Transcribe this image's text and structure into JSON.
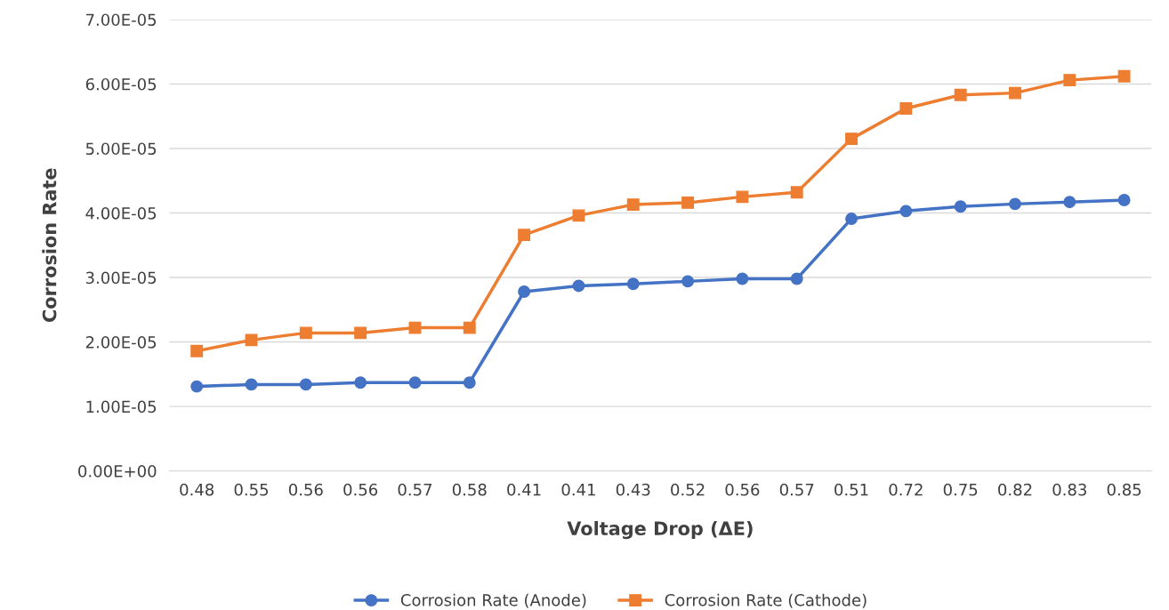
{
  "chart_data": {
    "type": "line",
    "xlabel": "Voltage Drop (ΔE)",
    "ylabel": "Corrosion Rate",
    "categories": [
      "0.48",
      "0.55",
      "0.56",
      "0.56",
      "0.57",
      "0.58",
      "0.41",
      "0.41",
      "0.43",
      "0.52",
      "0.56",
      "0.57",
      "0.51",
      "0.72",
      "0.75",
      "0.82",
      "0.83",
      "0.85"
    ],
    "series": [
      {
        "name": "Corrosion Rate (Anode)",
        "color": "#4472c4",
        "marker": "circle",
        "values": [
          1.31e-05,
          1.34e-05,
          1.34e-05,
          1.37e-05,
          1.37e-05,
          1.37e-05,
          2.78e-05,
          2.87e-05,
          2.9e-05,
          2.94e-05,
          2.98e-05,
          2.98e-05,
          3.91e-05,
          4.03e-05,
          4.1e-05,
          4.14e-05,
          4.17e-05,
          4.2e-05
        ]
      },
      {
        "name": "Corrosion Rate (Cathode)",
        "color": "#ed7d31",
        "marker": "square",
        "values": [
          1.86e-05,
          2.03e-05,
          2.14e-05,
          2.14e-05,
          2.22e-05,
          2.22e-05,
          3.66e-05,
          3.96e-05,
          4.13e-05,
          4.16e-05,
          4.25e-05,
          4.32e-05,
          5.15e-05,
          5.62e-05,
          5.83e-05,
          5.86e-05,
          6.06e-05,
          6.12e-05
        ]
      }
    ],
    "ylim": [
      0,
      7e-05
    ],
    "yticks": [
      {
        "value": 0,
        "label": "0.00E+00"
      },
      {
        "value": 1e-05,
        "label": "1.00E-05"
      },
      {
        "value": 2e-05,
        "label": "2.00E-05"
      },
      {
        "value": 3e-05,
        "label": "3.00E-05"
      },
      {
        "value": 4e-05,
        "label": "4.00E-05"
      },
      {
        "value": 5e-05,
        "label": "5.00E-05"
      },
      {
        "value": 6e-05,
        "label": "6.00E-05"
      },
      {
        "value": 7e-05,
        "label": "7.00E-05"
      }
    ],
    "grid": "y",
    "legend": "bottom",
    "line_style": "solid"
  }
}
